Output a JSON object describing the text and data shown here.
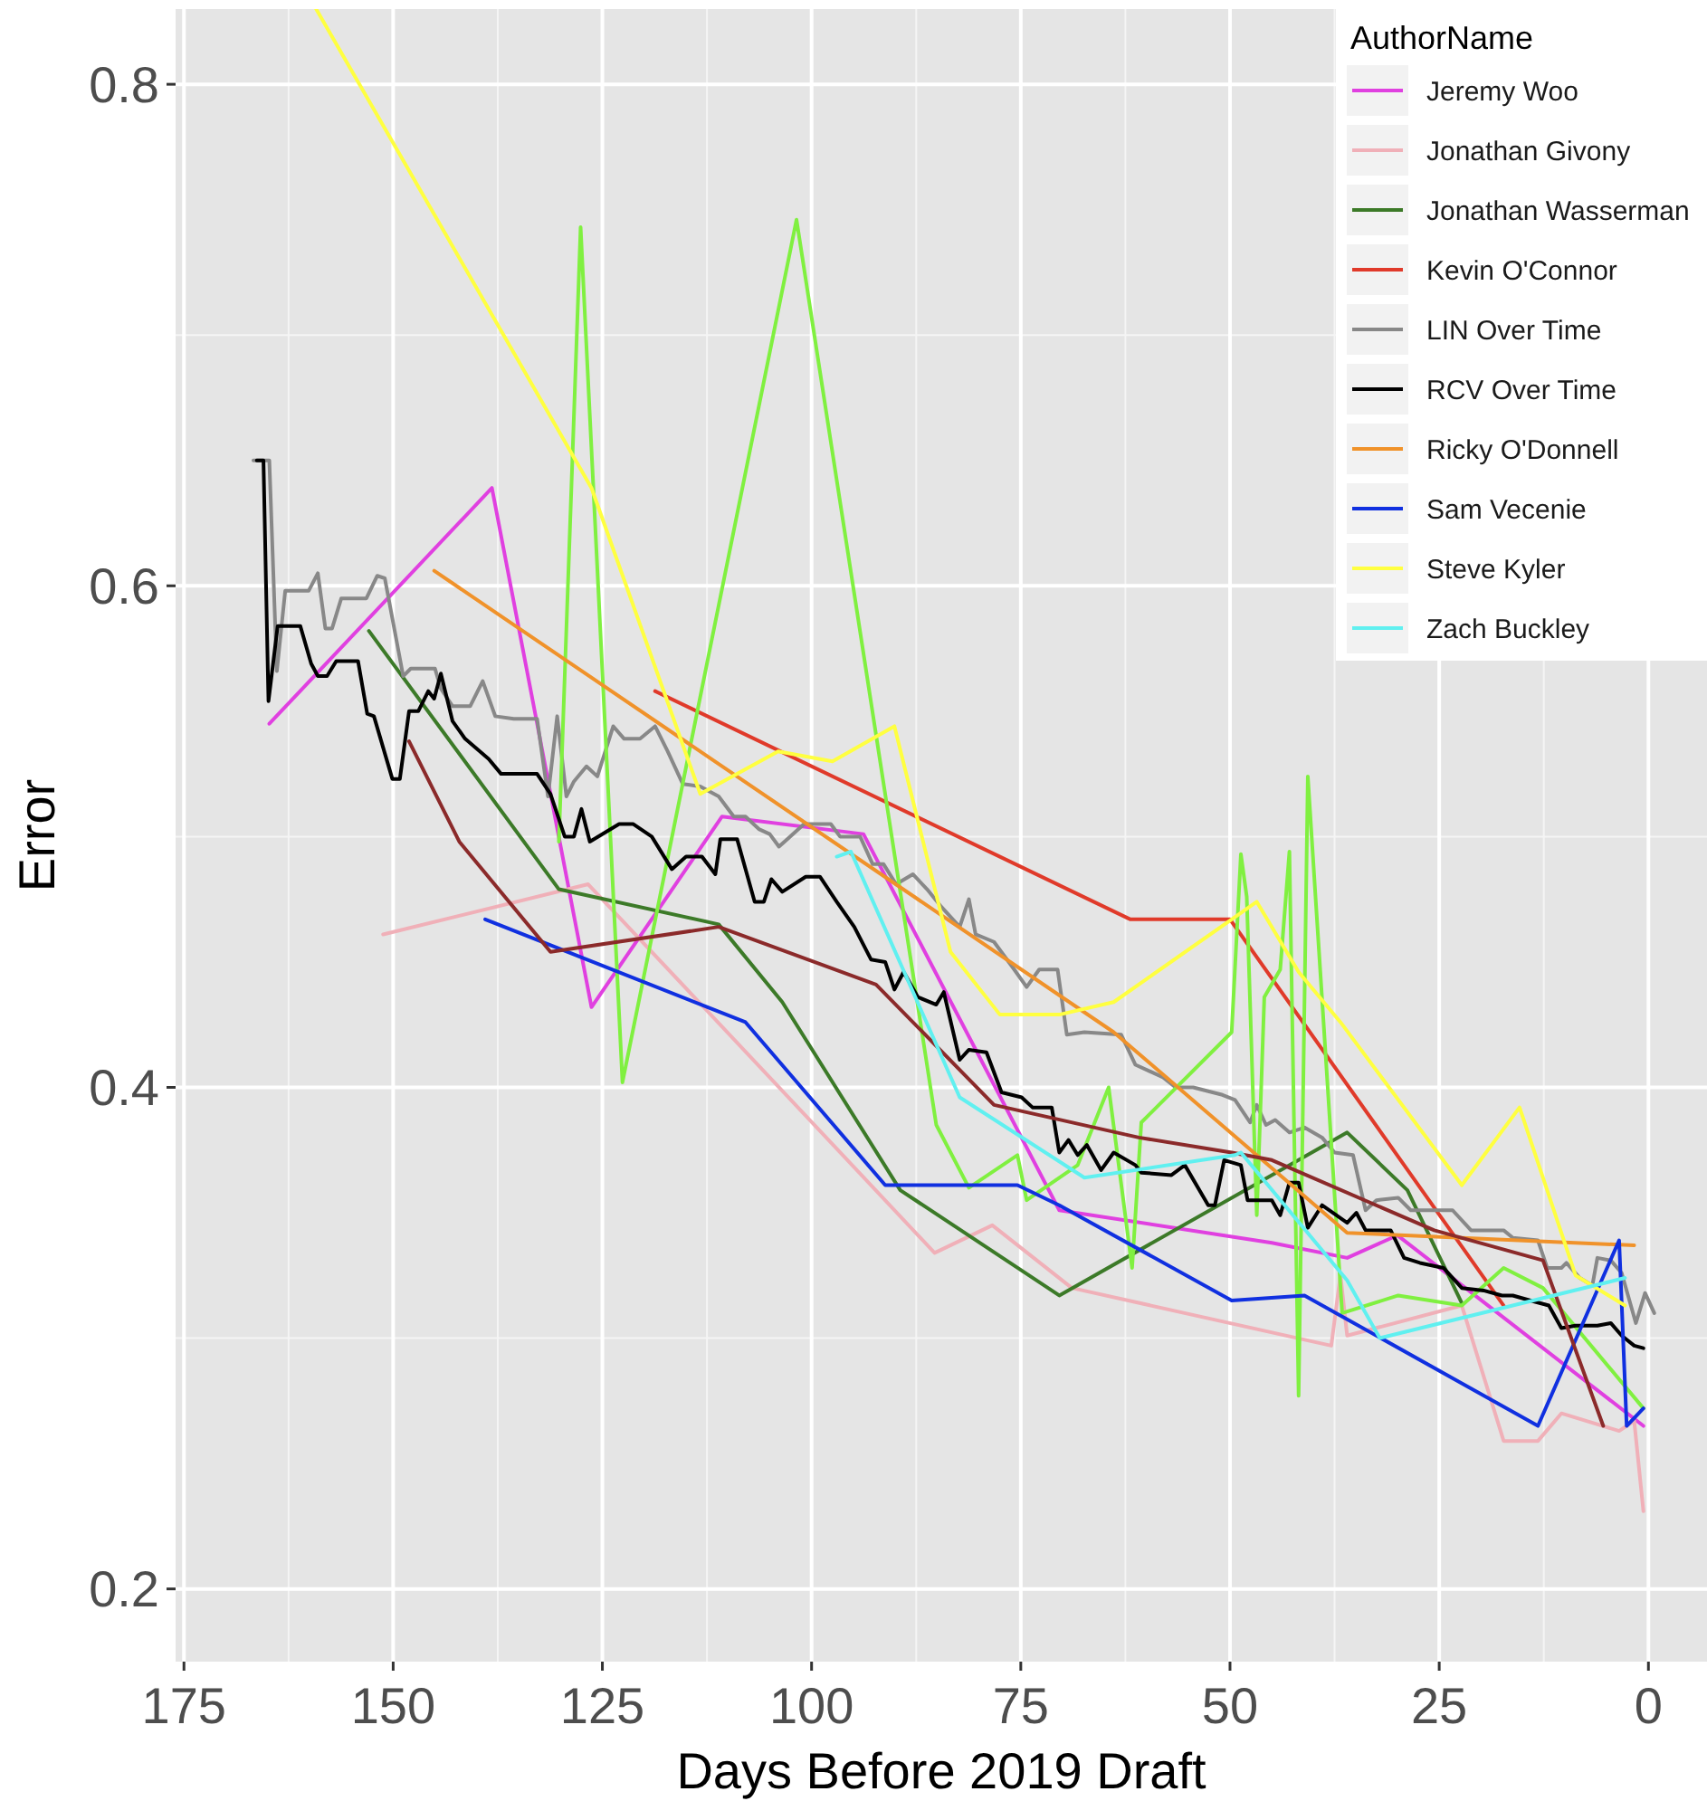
{
  "chart_data": {
    "type": "line",
    "xlabel": "Days Before 2019 Draft",
    "ylabel": "Error",
    "legend_title": "AuthorName",
    "legend": "top right",
    "grid": true,
    "line_style": "solid",
    "xlim": [
      176,
      -7
    ],
    "xticks": [
      175,
      150,
      125,
      100,
      75,
      50,
      25,
      0
    ],
    "ylim": [
      0.171,
      0.83
    ],
    "yticks": [
      0.2,
      0.4,
      0.6,
      0.8
    ],
    "series": [
      {
        "name": "Jeremy Woo",
        "color": "#e040e0",
        "x": [
          164.8,
          138.2,
          126.3,
          110.7,
          93.8,
          70.4,
          45.0,
          36.0,
          30.0,
          0.6
        ],
        "values": [
          0.545,
          0.639,
          0.432,
          0.508,
          0.501,
          0.351,
          0.338,
          0.332,
          0.341,
          0.265
        ]
      },
      {
        "name": "Jonathan Givony",
        "color": "#f0b0b8",
        "x": [
          151.2,
          126.7,
          85.3,
          78.4,
          68.9,
          37.9,
          36.8,
          36.0,
          22.3,
          17.3,
          13.2,
          10.4,
          3.5,
          1.7,
          0.6
        ],
        "values": [
          0.461,
          0.481,
          0.334,
          0.345,
          0.32,
          0.297,
          0.325,
          0.301,
          0.313,
          0.259,
          0.259,
          0.27,
          0.263,
          0.267,
          0.231
        ]
      },
      {
        "name": "Jonathan Wasserman",
        "color": "#3c7a28",
        "x": [
          152.9,
          130.2,
          111.1,
          103.5,
          89.4,
          70.4,
          36.0,
          28.8,
          22.3
        ],
        "values": [
          0.582,
          0.479,
          0.465,
          0.434,
          0.359,
          0.317,
          0.382,
          0.359,
          0.314
        ]
      },
      {
        "name": "Kevin O'Connor",
        "color": "#e03a2a",
        "x": [
          118.7,
          61.9,
          50.0,
          17.3
        ],
        "values": [
          0.558,
          0.467,
          0.467,
          0.313
        ]
      },
      {
        "name": "LIN Over Time",
        "color": "#888888",
        "x": [
          166.7,
          164.8,
          163.9,
          162.9,
          160.1,
          159,
          158.1,
          157.3,
          156.2,
          153.2,
          151.9,
          151,
          148.8,
          147.9,
          145,
          144.3,
          142.9,
          140.8,
          139.3,
          137.8,
          135.6,
          132.8,
          131.5,
          130.4,
          129.3,
          128.4,
          126.9,
          125.6,
          123.7,
          122.4,
          120.5,
          118.7,
          117.2,
          115.4,
          113.3,
          111.1,
          109.3,
          107.9,
          106.3,
          105,
          103.9,
          102.9,
          100.9,
          97.7,
          96.6,
          94.2,
          92.7,
          91.4,
          89.9,
          87.9,
          86.2,
          84.5,
          82.3,
          81.2,
          80.4,
          78.2,
          76,
          74.3,
          72.8,
          70.6,
          69.5,
          67.4,
          63,
          61.3,
          58,
          56.5,
          54.4,
          50.9,
          49.4,
          47.6,
          46.8,
          45.7,
          44.6,
          42.9,
          41.1,
          39,
          37.5,
          35.3,
          33.8,
          32.5,
          29.9,
          28.4,
          23.4,
          21.2,
          17.3,
          16.2,
          13.2,
          12.1,
          10.4,
          9.8,
          8.2,
          6.7,
          6.1,
          4.5,
          3.2,
          1.5,
          0.4,
          -0.7
        ],
        "values": [
          0.65,
          0.65,
          0.566,
          0.598,
          0.598,
          0.605,
          0.583,
          0.583,
          0.595,
          0.595,
          0.604,
          0.603,
          0.564,
          0.567,
          0.567,
          0.559,
          0.552,
          0.552,
          0.562,
          0.548,
          0.547,
          0.547,
          0.516,
          0.548,
          0.516,
          0.522,
          0.528,
          0.524,
          0.544,
          0.539,
          0.539,
          0.544,
          0.534,
          0.521,
          0.52,
          0.516,
          0.508,
          0.508,
          0.503,
          0.501,
          0.496,
          0.499,
          0.505,
          0.505,
          0.5,
          0.5,
          0.489,
          0.489,
          0.481,
          0.485,
          0.479,
          0.472,
          0.464,
          0.475,
          0.461,
          0.458,
          0.448,
          0.44,
          0.447,
          0.447,
          0.421,
          0.422,
          0.421,
          0.409,
          0.404,
          0.4,
          0.4,
          0.397,
          0.395,
          0.386,
          0.393,
          0.385,
          0.387,
          0.382,
          0.384,
          0.38,
          0.374,
          0.373,
          0.351,
          0.355,
          0.356,
          0.351,
          0.351,
          0.343,
          0.343,
          0.34,
          0.339,
          0.328,
          0.328,
          0.33,
          0.324,
          0.321,
          0.332,
          0.331,
          0.326,
          0.306,
          0.318,
          0.31
        ]
      },
      {
        "color": "#80f040",
        "x": [
          130.2,
          127.6,
          122.6,
          101.8,
          85.1,
          81.2,
          75.4,
          74.3,
          68.2,
          64.5,
          61.7,
          60.6,
          49.8,
          48.7,
          48.0,
          46.8,
          45.9,
          44.0,
          42.9,
          41.8,
          40.7,
          36.6,
          29.9,
          22.3,
          17.3,
          12.6,
          0.6
        ],
        "values": [
          0.498,
          0.743,
          0.402,
          0.746,
          0.385,
          0.36,
          0.373,
          0.355,
          0.369,
          0.4,
          0.328,
          0.386,
          0.422,
          0.493,
          0.476,
          0.349,
          0.436,
          0.447,
          0.494,
          0.277,
          0.524,
          0.31,
          0.317,
          0.313,
          0.328,
          0.32,
          0.272
        ]
      },
      {
        "name": "RCV Over Time",
        "color": "#000000",
        "x": [
          166.3,
          165.5,
          164.9,
          163.8,
          161.1,
          159.8,
          159,
          157.9,
          156.8,
          154.2,
          153.1,
          152.3,
          150.1,
          149.2,
          148.1,
          147,
          145.8,
          145.1,
          144.3,
          142.9,
          141.4,
          138.6,
          137.1,
          132.8,
          131.2,
          129.5,
          128.4,
          127.5,
          126.5,
          123,
          121.3,
          119.1,
          116.7,
          115,
          113.1,
          111.5,
          110.9,
          108.9,
          106.8,
          105.7,
          104.8,
          103.5,
          100.7,
          99,
          97,
          94.9,
          92.9,
          91.2,
          90.1,
          89,
          87.3,
          85.1,
          84.2,
          82.3,
          81.2,
          79.1,
          77.3,
          74.9,
          73.6,
          71.3,
          70.4,
          69.3,
          68.2,
          67.1,
          65.4,
          63.9,
          61.3,
          60.6,
          57,
          55.4,
          52.6,
          51.8,
          50.7,
          48.7,
          47.9,
          45,
          44,
          42.9,
          41.8,
          40.7,
          39,
          36,
          34.9,
          33.8,
          30.8,
          29.2,
          27.3,
          24.5,
          22.3,
          19.7,
          17.5,
          16.2,
          14.1,
          11.9,
          10.4,
          8.7,
          6.1,
          4.5,
          3.2,
          1.7,
          0.6
        ],
        "values": [
          0.65,
          0.65,
          0.554,
          0.584,
          0.584,
          0.569,
          0.564,
          0.564,
          0.57,
          0.57,
          0.549,
          0.548,
          0.523,
          0.523,
          0.55,
          0.55,
          0.558,
          0.555,
          0.565,
          0.546,
          0.539,
          0.531,
          0.525,
          0.525,
          0.517,
          0.5,
          0.5,
          0.511,
          0.498,
          0.505,
          0.505,
          0.5,
          0.487,
          0.492,
          0.492,
          0.485,
          0.499,
          0.499,
          0.474,
          0.474,
          0.483,
          0.478,
          0.484,
          0.484,
          0.474,
          0.464,
          0.451,
          0.45,
          0.439,
          0.446,
          0.436,
          0.433,
          0.438,
          0.411,
          0.415,
          0.414,
          0.398,
          0.396,
          0.392,
          0.392,
          0.374,
          0.379,
          0.373,
          0.377,
          0.367,
          0.374,
          0.369,
          0.366,
          0.365,
          0.369,
          0.353,
          0.353,
          0.371,
          0.369,
          0.355,
          0.355,
          0.349,
          0.362,
          0.362,
          0.344,
          0.353,
          0.346,
          0.35,
          0.343,
          0.343,
          0.332,
          0.33,
          0.328,
          0.32,
          0.319,
          0.317,
          0.317,
          0.315,
          0.313,
          0.304,
          0.305,
          0.305,
          0.306,
          0.301,
          0.297,
          0.296
        ]
      },
      {
        "name": "Ricky O'Donnell",
        "color": "#f0922a",
        "x": [
          145.1,
          63.9,
          36.0,
          1.7
        ],
        "values": [
          0.606,
          0.422,
          0.342,
          0.337
        ]
      },
      {
        "name": "Sam Vecenie",
        "color": "#1030e0",
        "x": [
          139.0,
          107.9,
          91.2,
          75.4,
          70.4,
          49.8,
          41.1,
          13.2,
          3.5,
          2.6,
          0.6
        ],
        "values": [
          0.467,
          0.426,
          0.361,
          0.361,
          0.353,
          0.315,
          0.317,
          0.265,
          0.339,
          0.265,
          0.272
        ]
      },
      {
        "name": "Steve Kyler",
        "color": "#ffff40",
        "x": [
          159.2,
          126.3,
          113.3,
          104,
          97.5,
          90.1,
          83.4,
          77.5,
          70.4,
          63.9,
          49.8,
          46.8,
          41.8,
          36.8,
          22.3,
          15.4,
          8.7,
          2.8
        ],
        "values": [
          0.83,
          0.639,
          0.517,
          0.534,
          0.53,
          0.544,
          0.454,
          0.429,
          0.429,
          0.434,
          0.467,
          0.474,
          0.446,
          0.426,
          0.361,
          0.392,
          0.325,
          0.313
        ]
      },
      {
        "color": "#8b2a2a",
        "x": [
          148.1,
          142.1,
          131.2,
          111.1,
          92.3,
          78.2,
          60.9,
          49.8,
          45,
          25.6,
          12.6,
          5.4
        ],
        "values": [
          0.538,
          0.498,
          0.454,
          0.464,
          0.441,
          0.393,
          0.38,
          0.374,
          0.371,
          0.343,
          0.331,
          0.265
        ]
      },
      {
        "name": "Zach Buckley",
        "color": "#60f0f0",
        "x": [
          97,
          95.3,
          82.3,
          67.4,
          49.4,
          48.7,
          36,
          32.1,
          2.8
        ],
        "values": [
          0.492,
          0.494,
          0.396,
          0.364,
          0.373,
          0.374,
          0.323,
          0.3,
          0.324
        ]
      }
    ]
  }
}
